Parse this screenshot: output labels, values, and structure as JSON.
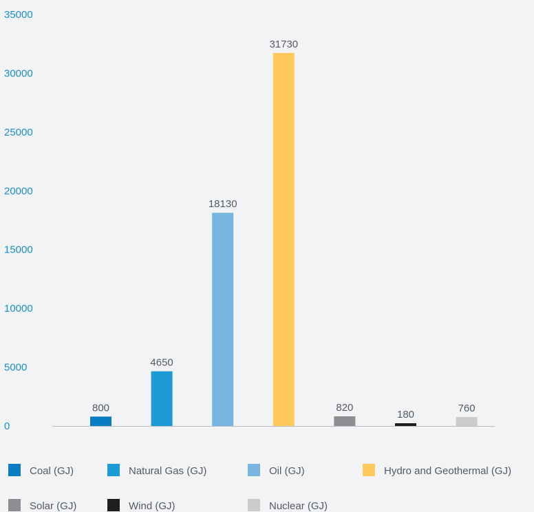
{
  "chart_data": {
    "type": "bar",
    "title": "",
    "xlabel": "",
    "ylabel": "",
    "ylim": [
      0,
      35000
    ],
    "yticks": [
      0,
      5000,
      10000,
      15000,
      20000,
      25000,
      30000,
      35000
    ],
    "grid": false,
    "legend_position": "bottom",
    "categories": [
      "Coal (GJ)",
      "Natural Gas (GJ)",
      "Oil (GJ)",
      "Hydro and Geothermal (GJ)",
      "Solar (GJ)",
      "Wind (GJ)",
      "Nuclear (GJ)"
    ],
    "values": [
      800,
      4650,
      18130,
      31730,
      820,
      180,
      760
    ],
    "data_labels": [
      "800",
      "4650",
      "18130",
      "31730",
      "820",
      "180",
      "760"
    ],
    "colors": [
      "#0a7cc1",
      "#1c9ad6",
      "#78b5e0",
      "#ffc95c",
      "#8c8e91",
      "#1f1d1e",
      "#c9cbcd"
    ],
    "axis_color": "#b9bcc0",
    "tick_label_color": "#1a8ec9"
  }
}
